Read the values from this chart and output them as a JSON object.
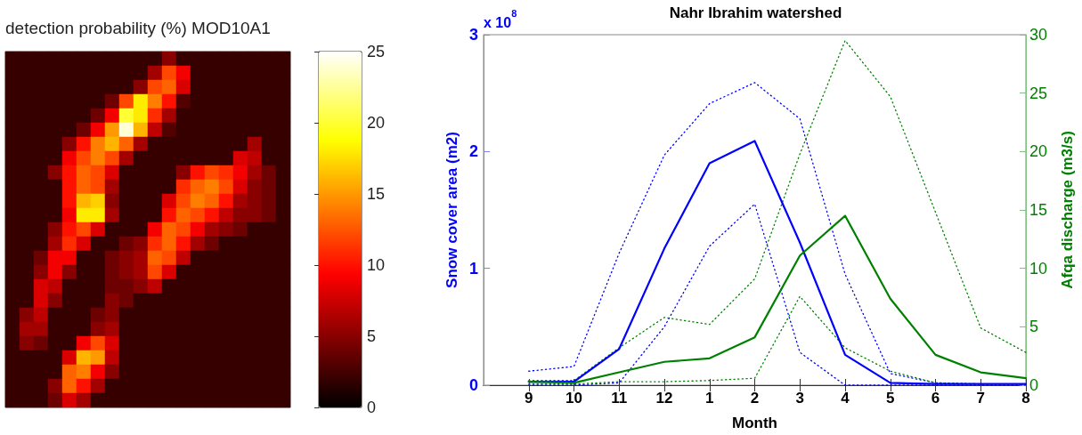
{
  "chart_data": [
    {
      "type": "heatmap",
      "title": "detection probability (%) MOD10A1",
      "tick_labels": false,
      "categories": [
        null,
        null,
        null,
        null,
        null,
        null,
        null,
        null,
        null,
        null,
        null,
        null,
        null,
        null,
        null,
        null,
        null,
        null,
        null,
        null
      ],
      "y_categories": [
        null,
        null,
        null,
        null,
        null,
        null,
        null,
        null,
        null,
        null,
        null,
        null,
        null,
        null,
        null,
        null,
        null,
        null,
        null,
        null,
        null,
        null,
        null,
        null,
        null
      ],
      "cells": [
        [
          2,
          2,
          2,
          2,
          2,
          2,
          2,
          2,
          2,
          2,
          2,
          5,
          2,
          2,
          2,
          2,
          2,
          2,
          2,
          2
        ],
        [
          2,
          2,
          2,
          2,
          2,
          2,
          2,
          2,
          2,
          2,
          6,
          12,
          9,
          2,
          2,
          2,
          2,
          2,
          2,
          2
        ],
        [
          2,
          2,
          2,
          2,
          2,
          2,
          2,
          2,
          2,
          5,
          12,
          13,
          8,
          2,
          2,
          2,
          2,
          2,
          2,
          2
        ],
        [
          2,
          2,
          2,
          2,
          2,
          2,
          2,
          4,
          12,
          18,
          14,
          10,
          3,
          2,
          2,
          2,
          2,
          2,
          2,
          2
        ],
        [
          2,
          2,
          2,
          2,
          2,
          2,
          4,
          9,
          20,
          18,
          11,
          6,
          2,
          2,
          2,
          2,
          2,
          2,
          2,
          2
        ],
        [
          2,
          2,
          2,
          2,
          2,
          4,
          9,
          15,
          24,
          16,
          7,
          3,
          2,
          2,
          2,
          2,
          2,
          2,
          2,
          2
        ],
        [
          2,
          2,
          2,
          2,
          5,
          10,
          14,
          16,
          13,
          6,
          2,
          2,
          2,
          2,
          2,
          2,
          2,
          6,
          2,
          2
        ],
        [
          2,
          2,
          2,
          2,
          9,
          12,
          14,
          12,
          6,
          2,
          2,
          2,
          2,
          2,
          2,
          2,
          8,
          7,
          2,
          2
        ],
        [
          2,
          2,
          2,
          5,
          10,
          13,
          12,
          8,
          2,
          2,
          2,
          2,
          5,
          10,
          12,
          11,
          9,
          6,
          4,
          2
        ],
        [
          2,
          2,
          2,
          2,
          10,
          13,
          12,
          6,
          2,
          2,
          2,
          2,
          11,
          13,
          14,
          12,
          8,
          5,
          4,
          2
        ],
        [
          2,
          2,
          2,
          2,
          10,
          16,
          17,
          5,
          2,
          2,
          2,
          8,
          12,
          14,
          13,
          10,
          6,
          5,
          4,
          2
        ],
        [
          2,
          2,
          2,
          2,
          9,
          18,
          18,
          6,
          2,
          2,
          2,
          10,
          13,
          12,
          10,
          7,
          5,
          5,
          4,
          2
        ],
        [
          2,
          2,
          2,
          5,
          10,
          12,
          8,
          2,
          2,
          2,
          9,
          13,
          12,
          9,
          6,
          5,
          4,
          2,
          2,
          2
        ],
        [
          2,
          2,
          2,
          6,
          11,
          8,
          2,
          2,
          4,
          5,
          11,
          13,
          10,
          6,
          4,
          2,
          2,
          2,
          2,
          2
        ],
        [
          2,
          2,
          4,
          9,
          9,
          2,
          2,
          4,
          5,
          6,
          13,
          12,
          7,
          2,
          2,
          2,
          2,
          2,
          2,
          2
        ],
        [
          2,
          2,
          5,
          9,
          5,
          2,
          2,
          4,
          5,
          6,
          12,
          8,
          2,
          2,
          2,
          2,
          2,
          2,
          2,
          2
        ],
        [
          2,
          2,
          8,
          7,
          2,
          2,
          2,
          4,
          4,
          5,
          7,
          2,
          2,
          2,
          2,
          2,
          2,
          2,
          2,
          2
        ],
        [
          2,
          2,
          8,
          5,
          2,
          2,
          2,
          5,
          4,
          2,
          2,
          2,
          2,
          2,
          2,
          2,
          2,
          2,
          2,
          2
        ],
        [
          2,
          5,
          7,
          2,
          2,
          2,
          4,
          5,
          2,
          2,
          2,
          2,
          2,
          2,
          2,
          2,
          2,
          2,
          2,
          2
        ],
        [
          2,
          6,
          6,
          2,
          2,
          2,
          5,
          6,
          2,
          2,
          2,
          2,
          2,
          2,
          2,
          2,
          2,
          2,
          2,
          2
        ],
        [
          2,
          5,
          4,
          2,
          2,
          9,
          12,
          8,
          2,
          2,
          2,
          2,
          2,
          2,
          2,
          2,
          2,
          2,
          2,
          2
        ],
        [
          2,
          2,
          2,
          2,
          8,
          16,
          15,
          7,
          2,
          2,
          2,
          2,
          2,
          2,
          2,
          2,
          2,
          2,
          2,
          2
        ],
        [
          2,
          2,
          2,
          2,
          13,
          14,
          9,
          5,
          2,
          2,
          2,
          2,
          2,
          2,
          2,
          2,
          2,
          2,
          2,
          2
        ],
        [
          2,
          2,
          2,
          5,
          13,
          10,
          6,
          2,
          2,
          2,
          2,
          2,
          2,
          2,
          2,
          2,
          2,
          2,
          2,
          2
        ],
        [
          2,
          2,
          2,
          4,
          8,
          6,
          2,
          2,
          2,
          2,
          2,
          2,
          2,
          2,
          2,
          2,
          2,
          2,
          2,
          2
        ]
      ],
      "clim": [
        0,
        25
      ],
      "cticks": [
        0,
        5,
        10,
        15,
        20,
        25
      ]
    },
    {
      "type": "line",
      "title": "Nahr Ibrahim watershed",
      "xlabel": "Month",
      "ylabel": "Snow cover area (m2)",
      "y2label": "Afqa discharge (m3/s)",
      "annotations": [
        "x 10$^{8}$"
      ],
      "categories": [
        null,
        "9",
        "10",
        "11",
        "12",
        "1",
        "2",
        "3",
        "4",
        "5",
        "6",
        "7",
        "8"
      ],
      "ylim": [
        0,
        3
      ],
      "yticks": [
        0,
        1,
        2,
        3
      ],
      "y2lim": [
        0,
        30
      ],
      "y2ticks": [
        0,
        5,
        10,
        15,
        20,
        25,
        30
      ],
      "series": [
        {
          "color": "#0000ff",
          "line_style": "dotted",
          "values": [
            null,
            0.12,
            0.16,
            1.13,
            1.97,
            2.41,
            2.59,
            2.28,
            0.95,
            0.1,
            0.02,
            0.01,
            0.01
          ]
        },
        {
          "color": "#0000ff",
          "line_style": "dotted",
          "values": [
            null,
            0,
            0,
            0.02,
            0.5,
            1.19,
            1.55,
            0.28,
            0,
            0,
            0,
            0,
            0
          ]
        },
        {
          "color": "#008000",
          "line_style": "dotted",
          "axis": "y2",
          "values": [
            null,
            0.4,
            0.4,
            3.2,
            5.8,
            5.2,
            9.1,
            19.8,
            29.5,
            24.7,
            14.8,
            4.9,
            2.8
          ]
        },
        {
          "color": "#008000",
          "line_style": "dotted",
          "axis": "y2",
          "values": [
            null,
            0.1,
            0.1,
            0.3,
            0.3,
            0.4,
            0.6,
            7.6,
            3.2,
            1.2,
            0.2,
            0.1,
            0.1
          ]
        },
        {
          "color": "#0000ff",
          "line_style": "solid",
          "values": [
            null,
            0.03,
            0.03,
            0.31,
            1.17,
            1.9,
            2.09,
            1.22,
            0.26,
            0.02,
            0.01,
            0.01,
            0.01
          ]
        },
        {
          "color": "#008000",
          "line_style": "solid",
          "axis": "y2",
          "values": [
            null,
            0.3,
            0.2,
            1.1,
            2.0,
            2.3,
            4.1,
            11.1,
            14.5,
            7.4,
            2.6,
            1.1,
            0.6
          ]
        }
      ]
    }
  ]
}
